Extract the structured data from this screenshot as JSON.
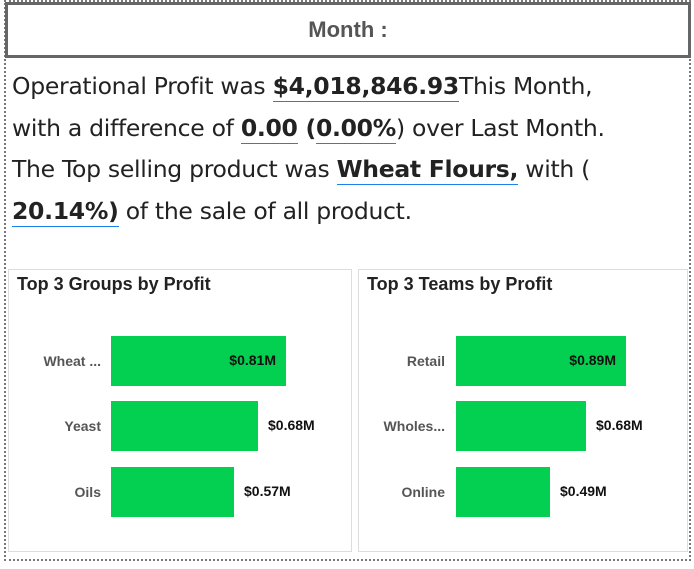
{
  "header": {
    "month_label": "Month :"
  },
  "narrative": {
    "line1_pre": "Operational Profit was ",
    "profit": "$4,018,846.93",
    "line1_post": "This Month,",
    "line2_pre": "with a difference of ",
    "difference": "0.00",
    "paren_open": " (",
    "difference_pct": "0.00%",
    "line2_post": ") over Last Month.",
    "line3_pre": "The Top selling product was ",
    "top_product": "Wheat Flours,",
    "line3_post": " with (",
    "top_share": "20.14%)",
    "line4_post": " of the sale of all product."
  },
  "colors": {
    "bar": "#03d050",
    "underline": "#1a82f0"
  },
  "chart_data": [
    {
      "type": "bar",
      "orientation": "horizontal",
      "title": "Top 3 Groups by Profit",
      "categories": [
        "Wheat ...",
        "Yeast",
        "Oils"
      ],
      "values": [
        0.81,
        0.68,
        0.57
      ],
      "labels": [
        "$0.81M",
        "$0.68M",
        "$0.57M"
      ],
      "unit": "$M"
    },
    {
      "type": "bar",
      "orientation": "horizontal",
      "title": "Top 3 Teams by Profit",
      "categories": [
        "Retail",
        "Wholes...",
        "Online"
      ],
      "values": [
        0.89,
        0.68,
        0.49
      ],
      "labels": [
        "$0.89M",
        "$0.68M",
        "$0.49M"
      ],
      "unit": "$M"
    }
  ]
}
